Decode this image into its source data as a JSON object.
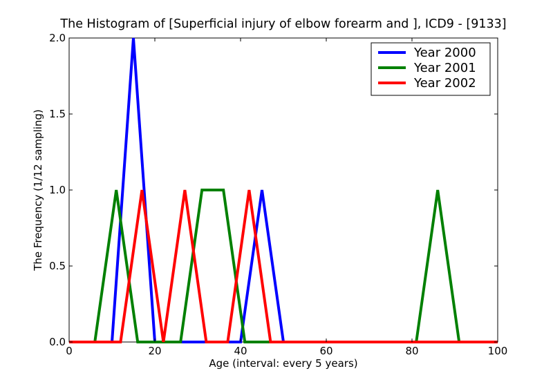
{
  "chart_data": {
    "type": "line",
    "title": "The Histogram of [Superficial injury of elbow forearm and ], ICD9 - [9133]",
    "xlabel": "Age (interval: every 5 years)",
    "ylabel": "The Frequency (1/12 sampling)",
    "xlim": [
      0,
      100
    ],
    "ylim": [
      0,
      2.0
    ],
    "xticks": [
      "0",
      "20",
      "40",
      "60",
      "80",
      "100"
    ],
    "yticks": [
      "0.0",
      "0.5",
      "1.0",
      "1.5",
      "2.0"
    ],
    "grid": false,
    "legend_position": "top-right",
    "series": [
      {
        "name": "Year 2000",
        "color": "#0000ff",
        "x": [
          0,
          10,
          15,
          20,
          25,
          30,
          35,
          40,
          45,
          50,
          55,
          60,
          65,
          70,
          75,
          80,
          85,
          90,
          95,
          100
        ],
        "values": [
          0,
          0,
          2,
          0,
          0,
          0,
          0,
          0,
          1,
          0,
          0,
          0,
          0,
          0,
          0,
          0,
          0,
          0,
          0,
          0
        ]
      },
      {
        "name": "Year 2001",
        "color": "#008000",
        "x": [
          0,
          6,
          11,
          16,
          21,
          26,
          31,
          36,
          41,
          46,
          51,
          56,
          61,
          66,
          71,
          76,
          81,
          86,
          91,
          96,
          100
        ],
        "values": [
          0,
          0,
          1,
          0,
          0,
          0,
          1,
          1,
          0,
          0,
          0,
          0,
          0,
          0,
          0,
          0,
          0,
          1,
          0,
          0,
          0
        ]
      },
      {
        "name": "Year 2002",
        "color": "#ff0000",
        "x": [
          0,
          12,
          17,
          22,
          27,
          32,
          37,
          42,
          47,
          52,
          57,
          62,
          67,
          72,
          77,
          82,
          87,
          92,
          97,
          100
        ],
        "values": [
          0,
          0,
          1,
          0,
          1,
          0,
          0,
          1,
          0,
          0,
          0,
          0,
          0,
          0,
          0,
          0,
          0,
          0,
          0,
          0
        ]
      }
    ]
  }
}
